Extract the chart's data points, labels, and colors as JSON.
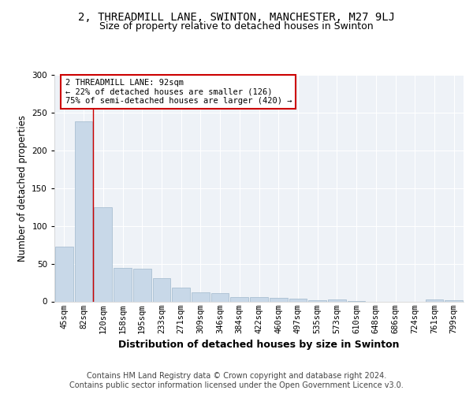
{
  "title1": "2, THREADMILL LANE, SWINTON, MANCHESTER, M27 9LJ",
  "title2": "Size of property relative to detached houses in Swinton",
  "xlabel": "Distribution of detached houses by size in Swinton",
  "ylabel": "Number of detached properties",
  "categories": [
    "45sqm",
    "82sqm",
    "120sqm",
    "158sqm",
    "195sqm",
    "233sqm",
    "271sqm",
    "309sqm",
    "346sqm",
    "384sqm",
    "422sqm",
    "460sqm",
    "497sqm",
    "535sqm",
    "573sqm",
    "610sqm",
    "648sqm",
    "686sqm",
    "724sqm",
    "761sqm",
    "799sqm"
  ],
  "values": [
    73,
    238,
    125,
    44,
    43,
    31,
    18,
    12,
    11,
    6,
    6,
    5,
    4,
    2,
    3,
    1,
    0,
    0,
    0,
    3,
    2
  ],
  "bar_color": "#c8d8e8",
  "bar_edge_color": "#a0b8cc",
  "vline_color": "#cc0000",
  "annotation_text": "2 THREADMILL LANE: 92sqm\n← 22% of detached houses are smaller (126)\n75% of semi-detached houses are larger (420) →",
  "annotation_box_color": "#ffffff",
  "annotation_box_edge": "#cc0000",
  "bg_color": "#eef2f7",
  "grid_color": "#ffffff",
  "footer": "Contains HM Land Registry data © Crown copyright and database right 2024.\nContains public sector information licensed under the Open Government Licence v3.0.",
  "ylim": [
    0,
    300
  ],
  "title1_fontsize": 10,
  "title2_fontsize": 9,
  "xlabel_fontsize": 9,
  "ylabel_fontsize": 8.5,
  "tick_fontsize": 7.5,
  "footer_fontsize": 7
}
